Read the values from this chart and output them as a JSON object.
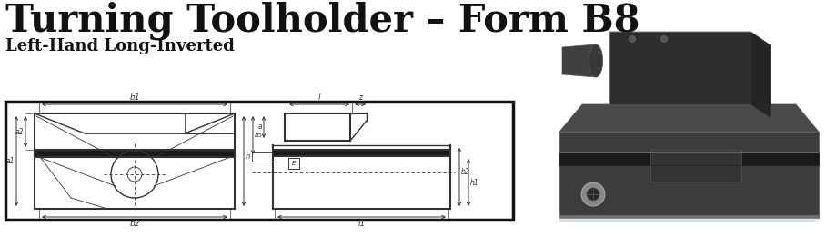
{
  "title": "Turning Toolholder – Form B8",
  "subtitle": "Left-Hand Long-Inverted",
  "title_fontsize": 30,
  "subtitle_fontsize": 13,
  "title_color": "#111111",
  "subtitle_color": "#111111",
  "background_color": "#ffffff",
  "diagram_border_color": "#111111",
  "diagram_line_color": "#333333",
  "slot_fill_color": "#1a1a1a",
  "photo_dark": "#2d2d2d",
  "photo_mid": "#404040",
  "photo_light": "#585858",
  "photo_shadow": "#1a1a1a",
  "photo_bg": "#c8d8e8"
}
